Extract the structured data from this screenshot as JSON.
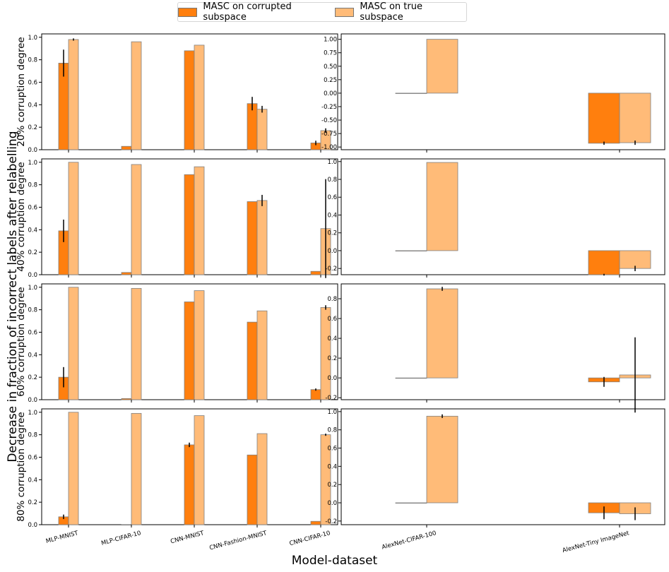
{
  "legend": {
    "corrupted": "MASC on corrupted subspace",
    "true": "MASC on true subspace"
  },
  "colors": {
    "corrupted": "#ff7f0e",
    "true": "#ffbb78",
    "edge": "#808080",
    "error": "#000000"
  },
  "xlabel": "Model-dataset",
  "ylabel": "Decrease in fraction of incorrect labels after relabelling",
  "chart_data": [
    {
      "type": "bar",
      "row_label": "20% corruption degree",
      "panel": "left",
      "categories": [
        "MLP-MNIST",
        "MLP-CIFAR-10",
        "CNN-MNIST",
        "CNN-Fashion-MNIST",
        "CNN-CIFAR-10"
      ],
      "ylim": [
        0,
        1.03
      ],
      "yticks": [
        "0.0",
        "0.2",
        "0.4",
        "0.6",
        "0.8",
        "1.0"
      ],
      "series": [
        {
          "name": "MASC on corrupted subspace",
          "values": [
            0.77,
            0.03,
            0.88,
            0.41,
            0.06
          ],
          "err": [
            0.12,
            0.0,
            0.0,
            0.06,
            0.02
          ]
        },
        {
          "name": "MASC on true subspace",
          "values": [
            0.98,
            0.96,
            0.93,
            0.36,
            0.17
          ],
          "err": [
            0.01,
            0.0,
            0.0,
            0.03,
            0.02
          ]
        }
      ]
    },
    {
      "type": "bar",
      "row_label": "20% corruption degree",
      "panel": "right",
      "categories": [
        "AlexNet-CIFAR-100",
        "AlexNet-Tiny ImageNet"
      ],
      "ylim": [
        -1.05,
        1.1
      ],
      "yticks": [
        "-1.00",
        "-0.75",
        "-0.50",
        "-0.25",
        "0.00",
        "0.25",
        "0.50",
        "0.75",
        "1.00"
      ],
      "series": [
        {
          "name": "MASC on corrupted subspace",
          "values": [
            0.0,
            -0.93
          ],
          "err": [
            0.0,
            0.03
          ]
        },
        {
          "name": "MASC on true subspace",
          "values": [
            1.0,
            -0.92
          ],
          "err": [
            0.0,
            0.04
          ]
        }
      ]
    },
    {
      "type": "bar",
      "row_label": "40% corruption degree",
      "panel": "left",
      "categories": [
        "MLP-MNIST",
        "MLP-CIFAR-10",
        "CNN-MNIST",
        "CNN-Fashion-MNIST",
        "CNN-CIFAR-10"
      ],
      "ylim": [
        0,
        1.03
      ],
      "yticks": [
        "0.0",
        "0.2",
        "0.4",
        "0.6",
        "0.8",
        "1.0"
      ],
      "series": [
        {
          "name": "MASC on corrupted subspace",
          "values": [
            0.39,
            0.02,
            0.89,
            0.65,
            0.03
          ],
          "err": [
            0.1,
            0.0,
            0.0,
            0.0,
            0.0
          ]
        },
        {
          "name": "MASC on true subspace",
          "values": [
            1.0,
            0.98,
            0.96,
            0.66,
            0.41
          ],
          "err": [
            0.0,
            0.0,
            0.0,
            0.05,
            0.44
          ]
        }
      ]
    },
    {
      "type": "bar",
      "row_label": "40% corruption degree",
      "panel": "right",
      "categories": [
        "AlexNet-CIFAR-100",
        "AlexNet-Tiny ImageNet"
      ],
      "ylim": [
        -0.27,
        1.03
      ],
      "yticks": [
        "-0.2",
        "0.0",
        "0.2",
        "0.4",
        "0.6",
        "0.8",
        "1.0"
      ],
      "series": [
        {
          "name": "MASC on corrupted subspace",
          "values": [
            0.0,
            -0.27
          ],
          "err": [
            0.0,
            0.01
          ]
        },
        {
          "name": "MASC on true subspace",
          "values": [
            0.99,
            -0.2
          ],
          "err": [
            0.0,
            0.03
          ]
        }
      ]
    },
    {
      "type": "bar",
      "row_label": "60% corruption degree",
      "panel": "left",
      "categories": [
        "MLP-MNIST",
        "MLP-CIFAR-10",
        "CNN-MNIST",
        "CNN-Fashion-MNIST",
        "CNN-CIFAR-10"
      ],
      "ylim": [
        0,
        1.03
      ],
      "yticks": [
        "0.0",
        "0.2",
        "0.4",
        "0.6",
        "0.8",
        "1.0"
      ],
      "series": [
        {
          "name": "MASC on corrupted subspace",
          "values": [
            0.2,
            0.01,
            0.87,
            0.69,
            0.09
          ],
          "err": [
            0.09,
            0.0,
            0.0,
            0.0,
            0.01
          ]
        },
        {
          "name": "MASC on true subspace",
          "values": [
            1.0,
            0.99,
            0.97,
            0.79,
            0.82
          ],
          "err": [
            0.0,
            0.0,
            0.0,
            0.0,
            0.02
          ]
        }
      ]
    },
    {
      "type": "bar",
      "row_label": "60% corruption degree",
      "panel": "right",
      "categories": [
        "AlexNet-CIFAR-100",
        "AlexNet-Tiny ImageNet"
      ],
      "ylim": [
        -0.22,
        0.95
      ],
      "yticks": [
        "-0.2",
        "0.0",
        "0.2",
        "0.4",
        "0.6",
        "0.8"
      ],
      "series": [
        {
          "name": "MASC on corrupted subspace",
          "values": [
            0.0,
            -0.04
          ],
          "err": [
            0.0,
            0.05
          ]
        },
        {
          "name": "MASC on true subspace",
          "values": [
            0.9,
            0.03
          ],
          "err": [
            0.02,
            0.38
          ]
        }
      ]
    },
    {
      "type": "bar",
      "row_label": "80% corruption degree",
      "panel": "left",
      "categories": [
        "MLP-MNIST",
        "MLP-CIFAR-10",
        "CNN-MNIST",
        "CNN-Fashion-MNIST",
        "CNN-CIFAR-10"
      ],
      "ylim": [
        0,
        1.03
      ],
      "yticks": [
        "0.0",
        "0.2",
        "0.4",
        "0.6",
        "0.8",
        "1.0"
      ],
      "series": [
        {
          "name": "MASC on corrupted subspace",
          "values": [
            0.07,
            0.0,
            0.71,
            0.62,
            0.03
          ],
          "err": [
            0.02,
            0.0,
            0.02,
            0.0,
            0.0
          ]
        },
        {
          "name": "MASC on true subspace",
          "values": [
            1.0,
            0.99,
            0.97,
            0.81,
            0.8
          ],
          "err": [
            0.0,
            0.0,
            0.0,
            0.0,
            0.01
          ]
        }
      ]
    },
    {
      "type": "bar",
      "row_label": "80% corruption degree",
      "panel": "right",
      "categories": [
        "AlexNet-CIFAR-100",
        "AlexNet-Tiny ImageNet"
      ],
      "ylim": [
        -0.24,
        1.03
      ],
      "yticks": [
        "-0.2",
        "0.0",
        "0.2",
        "0.4",
        "0.6",
        "0.8",
        "1.0"
      ],
      "series": [
        {
          "name": "MASC on corrupted subspace",
          "values": [
            0.0,
            -0.11
          ],
          "err": [
            0.0,
            0.07
          ]
        },
        {
          "name": "MASC on true subspace",
          "values": [
            0.95,
            -0.12
          ],
          "err": [
            0.02,
            0.07
          ]
        }
      ]
    }
  ]
}
